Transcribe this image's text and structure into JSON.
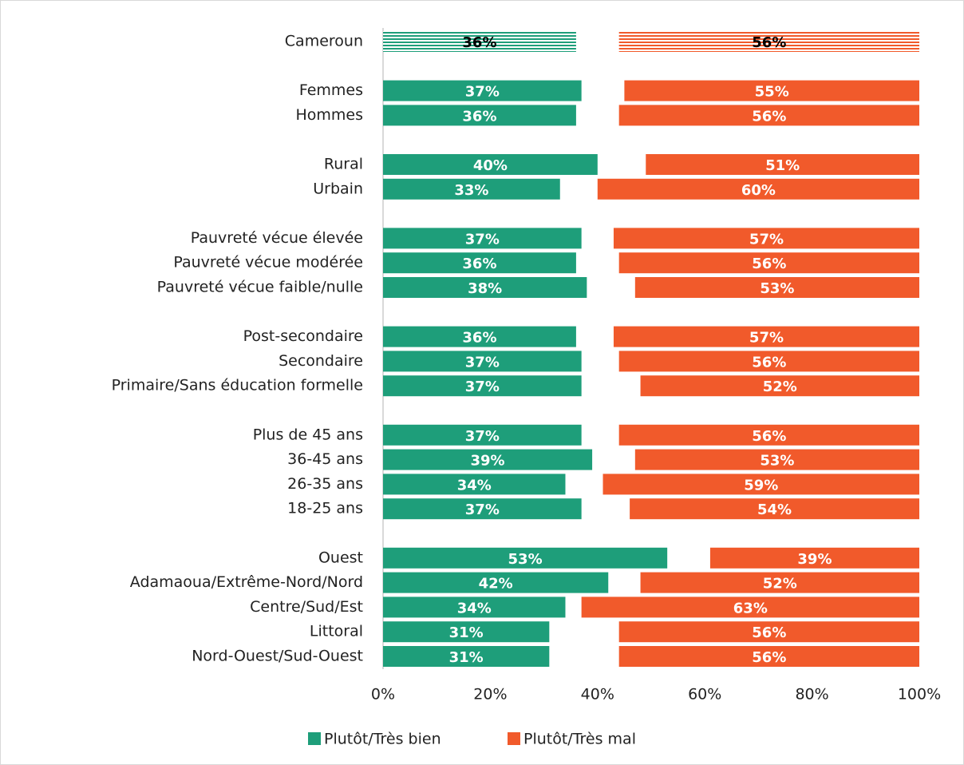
{
  "chart_data": {
    "type": "bar",
    "orientation": "horizontal",
    "categories": [
      "Cameroun",
      null,
      "Femmes",
      "Hommes",
      null,
      "Rural",
      "Urbain",
      null,
      "Pauvreté vécue élevée",
      "Pauvreté vécue modérée",
      "Pauvreté vécue faible/nulle",
      null,
      "Post-secondaire",
      "Secondaire",
      "Primaire/Sans éducation formelle",
      null,
      "Plus de 45 ans",
      "36-45 ans",
      "26-35 ans",
      "18-25 ans",
      null,
      "Ouest",
      "Adamaoua/Extrême-Nord/Nord",
      "Centre/Sud/Est",
      "Littoral",
      "Nord-Ouest/Sud-Ouest"
    ],
    "series": [
      {
        "name": "Plutôt/Très bien",
        "color": "#1e9e7a",
        "align": "left",
        "values": [
          36,
          null,
          37,
          36,
          null,
          40,
          33,
          null,
          37,
          36,
          38,
          null,
          36,
          37,
          37,
          null,
          37,
          39,
          34,
          37,
          null,
          53,
          42,
          34,
          31,
          31
        ],
        "value_labels": [
          "36%",
          null,
          "37%",
          "36%",
          null,
          "40%",
          "33%",
          null,
          "37%",
          "36%",
          "38%",
          null,
          "36%",
          "37%",
          "37%",
          null,
          "37%",
          "39%",
          "34%",
          "37%",
          null,
          "53%",
          "42%",
          "34%",
          "31%",
          "31%"
        ]
      },
      {
        "name": "Plutôt/Très mal",
        "color": "#f15a2b",
        "align": "right",
        "values": [
          56,
          null,
          55,
          56,
          null,
          51,
          60,
          null,
          57,
          56,
          53,
          null,
          57,
          56,
          52,
          null,
          56,
          53,
          59,
          54,
          null,
          39,
          52,
          63,
          56,
          56
        ],
        "value_labels": [
          "56%",
          null,
          "55%",
          "56%",
          null,
          "51%",
          "60%",
          null,
          "57%",
          "56%",
          "53%",
          null,
          "57%",
          "56%",
          "52%",
          null,
          "56%",
          "53%",
          "59%",
          "54%",
          null,
          "39%",
          "52%",
          "63%",
          "56%",
          "56%"
        ]
      }
    ],
    "highlight_index": 0,
    "xlim": [
      0,
      100
    ],
    "xticks": [
      {
        "value": 0,
        "label": "0%"
      },
      {
        "value": 20,
        "label": "20%"
      },
      {
        "value": 40,
        "label": "40%"
      },
      {
        "value": 60,
        "label": "60%"
      },
      {
        "value": 80,
        "label": "80%"
      },
      {
        "value": 100,
        "label": "100%"
      }
    ],
    "grid": false,
    "legend": "bottom"
  }
}
